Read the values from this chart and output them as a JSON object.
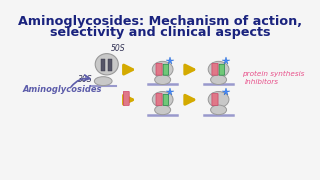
{
  "title_line1": "Aminoglycosides: Mechanism of action,",
  "title_line2": "selectivity and clinical aspects",
  "title_color": "#1a237e",
  "bg_color": "#f5f5f5",
  "aminoglycosides_label": "Aminoglycosides",
  "aminoglycosides_color": "#5c5caa",
  "protein_synthesis_line1": "protein synthesis",
  "protein_synthesis_line2": "Inhibitors",
  "protein_synthesis_color": "#e8508a",
  "label_50s": "50S",
  "label_30s": "30S",
  "label_color": "#555555",
  "arrow_color": "#d4aa00",
  "body_color": "#c8c8c8",
  "outline_color": "#999999",
  "pink_bar_color": "#e07888",
  "green_bar_color": "#70c878",
  "mrna_color": "#9999cc",
  "star_color": "#4488ff",
  "bar_dark_color": "#555566"
}
